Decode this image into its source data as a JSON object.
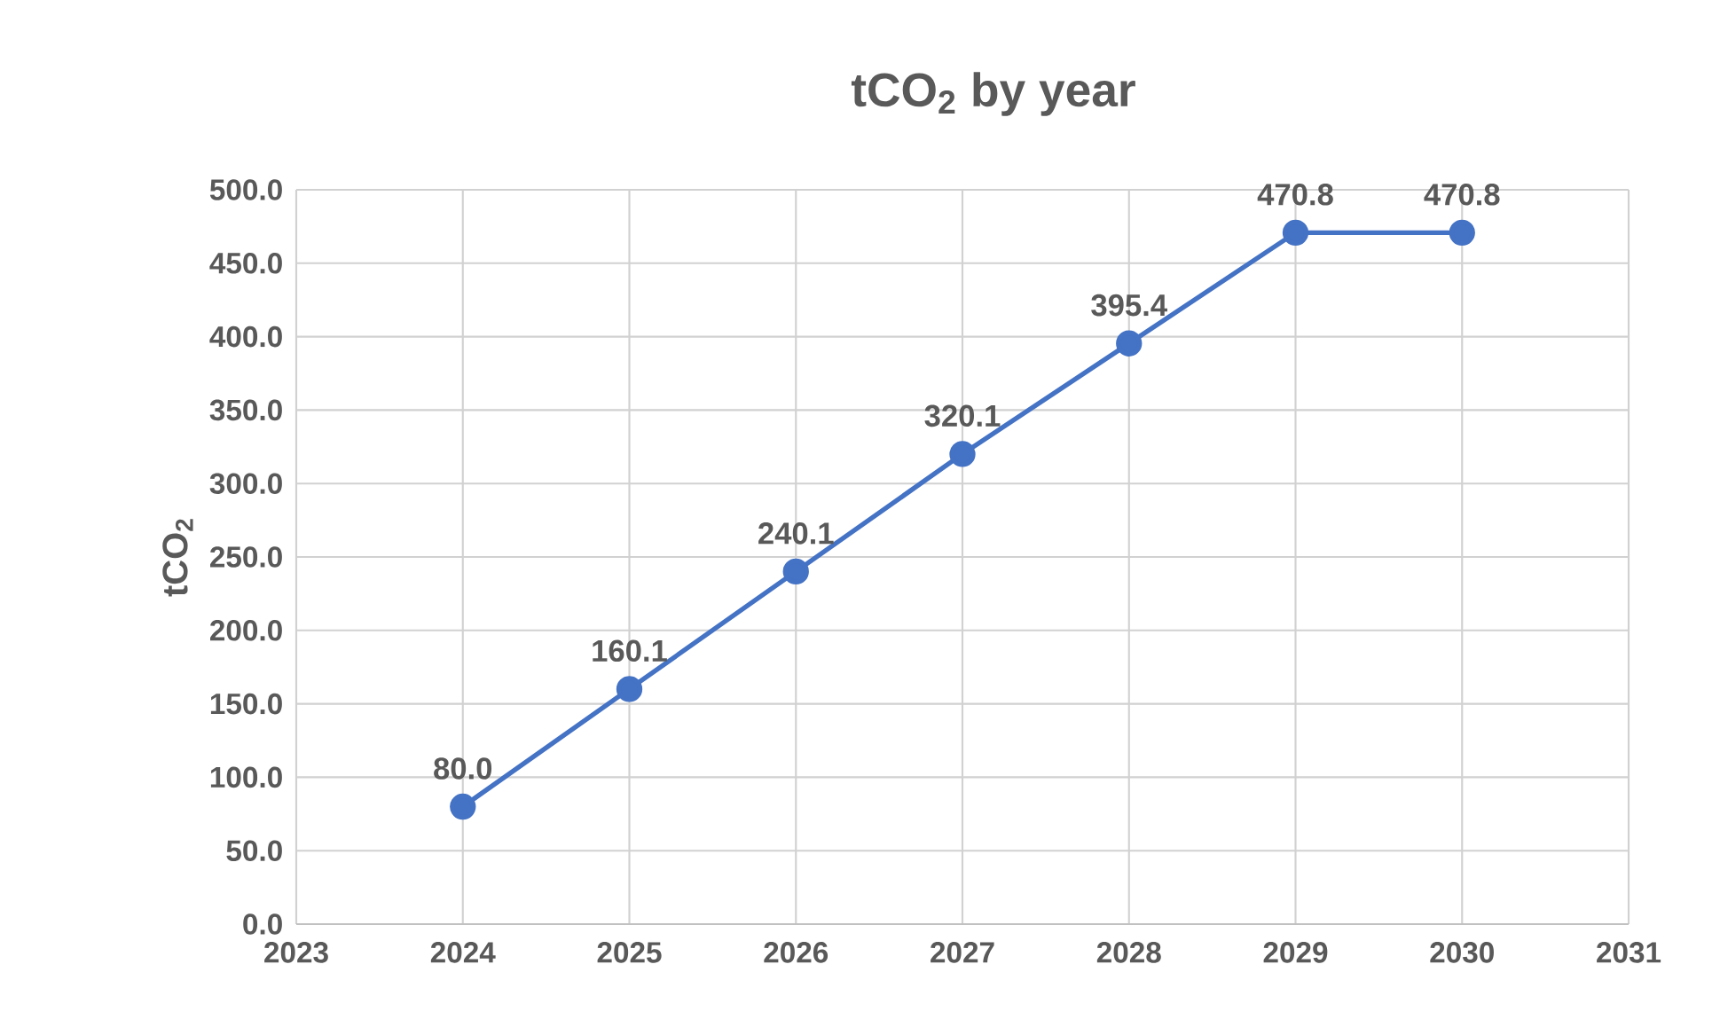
{
  "chart_data": {
    "type": "line",
    "title": "tCO$_{2}$ by year",
    "ylabel": "tCO$_{2}$",
    "x": [
      2024,
      2025,
      2026,
      2027,
      2028,
      2029,
      2030
    ],
    "series": [
      {
        "color": "#4472c4",
        "values": [
          80.0,
          160.1,
          240.1,
          320.1,
          395.4,
          470.8,
          470.8
        ],
        "value_labels": [
          "80.0",
          "160.1",
          "240.1",
          "320.1",
          "395.4",
          "470.8",
          "470.8"
        ]
      }
    ],
    "xlim": [
      2023,
      2031
    ],
    "xticks": [
      2023,
      2024,
      2025,
      2026,
      2027,
      2028,
      2029,
      2030,
      2031
    ],
    "ylim": [
      0,
      500
    ],
    "yticks": [
      {
        "value": 0,
        "label": "0.0"
      },
      {
        "value": 50,
        "label": "50.0"
      },
      {
        "value": 100,
        "label": "100.0"
      },
      {
        "value": 150,
        "label": "150.0"
      },
      {
        "value": 200,
        "label": "200.0"
      },
      {
        "value": 250,
        "label": "250.0"
      },
      {
        "value": 300,
        "label": "300.0"
      },
      {
        "value": 350,
        "label": "350.0"
      },
      {
        "value": 400,
        "label": "400.0"
      },
      {
        "value": 450,
        "label": "450.0"
      },
      {
        "value": 500,
        "label": "500.0"
      }
    ],
    "grid": true,
    "marker": "circle",
    "line_style": "solid"
  }
}
